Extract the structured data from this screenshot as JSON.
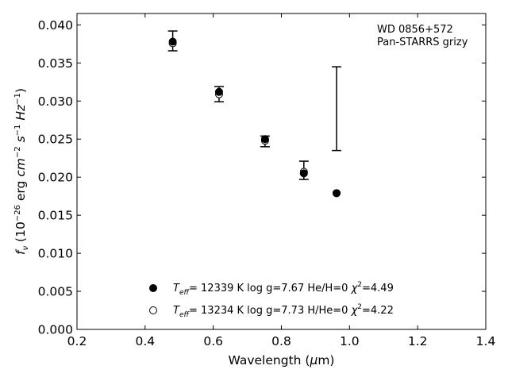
{
  "chart_data": {
    "type": "scatter",
    "title": "",
    "xlabel": "Wavelength (μm)",
    "ylabel": "f_ν (10^-26 erg cm^-2 s^-1 Hz^-1)",
    "xlim": [
      0.2,
      1.4
    ],
    "ylim": [
      0.0,
      0.0415
    ],
    "xticks": [
      0.2,
      0.4,
      0.6,
      0.8,
      1.0,
      1.2,
      1.4
    ],
    "xtick_labels": [
      "0.2",
      "0.4",
      "0.6",
      "0.8",
      "1.0",
      "1.2",
      "1.4"
    ],
    "yticks": [
      0.0,
      0.005,
      0.01,
      0.015,
      0.02,
      0.025,
      0.03,
      0.035,
      0.04
    ],
    "ytick_labels": [
      "0.000",
      "0.005",
      "0.010",
      "0.015",
      "0.020",
      "0.025",
      "0.030",
      "0.035",
      "0.040"
    ],
    "grid": false,
    "annotation": [
      "WD 0856+572",
      "Pan-STARRS grizy"
    ],
    "observed": {
      "x": [
        0.481,
        0.617,
        0.752,
        0.866,
        0.962
      ],
      "y": [
        0.0379,
        0.0309,
        0.0247,
        0.0209,
        0.029
      ],
      "err": [
        0.0013,
        0.001,
        0.0007,
        0.0012,
        0.0055
      ]
    },
    "series": [
      {
        "name": "T_eff= 12339 K  log g=7.67  He/H=0  χ²=4.49",
        "marker": "filled",
        "x": [
          0.481,
          0.617,
          0.752,
          0.866,
          0.962
        ],
        "y": [
          0.0378,
          0.0312,
          0.025,
          0.0205,
          0.0179
        ]
      },
      {
        "name": "T_eff= 13234 K  log g=7.73  H/He=0  χ²=4.22",
        "marker": "open",
        "x": [
          0.481,
          0.617,
          0.752,
          0.866,
          0.962
        ],
        "y": [
          0.0376,
          0.0309,
          0.0248,
          0.0207,
          0.0179
        ]
      }
    ],
    "legend_position": "lower-center"
  }
}
